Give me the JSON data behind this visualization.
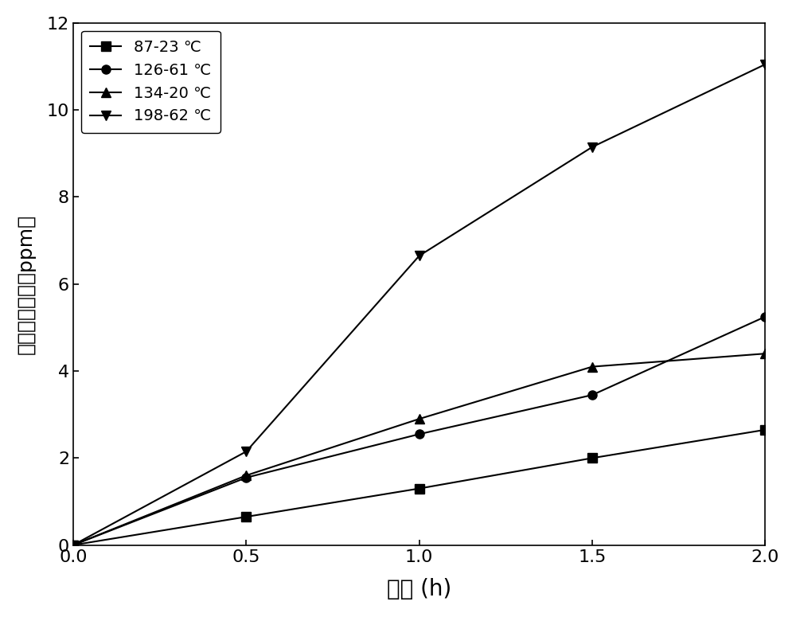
{
  "series": [
    {
      "label": "87-23 ℃",
      "x": [
        0.0,
        0.5,
        1.0,
        1.5,
        2.0
      ],
      "y": [
        0.0,
        0.65,
        1.3,
        2.0,
        2.65
      ],
      "marker": "s",
      "color": "#000000",
      "markersize": 8,
      "linewidth": 1.5
    },
    {
      "label": "126-61 ℃",
      "x": [
        0.0,
        0.5,
        1.0,
        1.5,
        2.0
      ],
      "y": [
        0.0,
        1.55,
        2.55,
        3.45,
        5.25
      ],
      "marker": "o",
      "color": "#000000",
      "markersize": 8,
      "linewidth": 1.5
    },
    {
      "label": "134-20 ℃",
      "x": [
        0.0,
        0.5,
        1.0,
        1.5,
        2.0
      ],
      "y": [
        0.0,
        1.6,
        2.9,
        4.1,
        4.4
      ],
      "marker": "^",
      "color": "#000000",
      "markersize": 8,
      "linewidth": 1.5
    },
    {
      "label": "198-62 ℃",
      "x": [
        0.0,
        0.5,
        1.0,
        1.5,
        2.0
      ],
      "y": [
        0.0,
        2.15,
        6.65,
        9.15,
        11.05
      ],
      "marker": "v",
      "color": "#000000",
      "markersize": 8,
      "linewidth": 1.5
    }
  ],
  "xlabel": "时间 (h)",
  "ylabel": "一氧化碗浓度（ppm）",
  "xlim": [
    0.0,
    2.0
  ],
  "ylim": [
    0,
    12
  ],
  "xticks": [
    0.0,
    0.5,
    1.0,
    1.5,
    2.0
  ],
  "yticks": [
    0,
    2,
    4,
    6,
    8,
    10,
    12
  ],
  "background_color": "#ffffff",
  "xlabel_fontsize": 20,
  "ylabel_fontsize": 18,
  "tick_fontsize": 16,
  "legend_fontsize": 14,
  "legend_loc": "upper left"
}
